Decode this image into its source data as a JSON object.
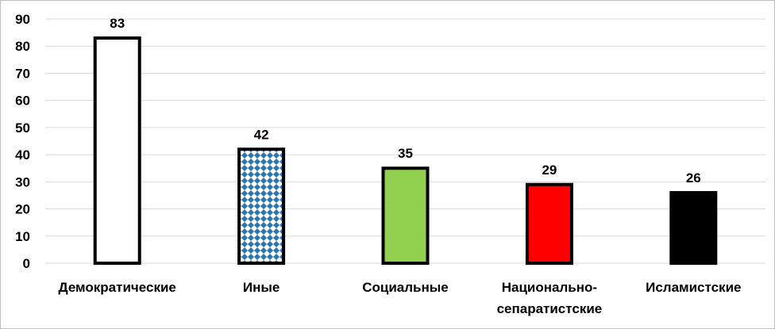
{
  "chart_data": {
    "type": "bar",
    "categories": [
      "Демократические",
      "Иные",
      "Социальные",
      "Национально-сепаратистские",
      "Исламистские"
    ],
    "category_lines": [
      [
        "Демократические"
      ],
      [
        "Иные"
      ],
      [
        "Социальные"
      ],
      [
        "Национально-",
        "сепаратистские"
      ],
      [
        "Исламистские"
      ]
    ],
    "values": [
      83,
      42,
      35,
      29,
      26
    ],
    "bar_fills": [
      "white",
      "blue-diamond-pattern",
      "#92d050",
      "#ff0000",
      "#000000"
    ],
    "title": "",
    "xlabel": "",
    "ylabel": "",
    "ylim": [
      0,
      90
    ],
    "yticks": [
      0,
      10,
      20,
      30,
      40,
      50,
      60,
      70,
      80,
      90
    ],
    "grid": true,
    "legend": "none",
    "colors": {
      "gridline": "#d9d9d9",
      "bar_outline": "#000000",
      "pattern_blue": "#2e75b6"
    }
  }
}
